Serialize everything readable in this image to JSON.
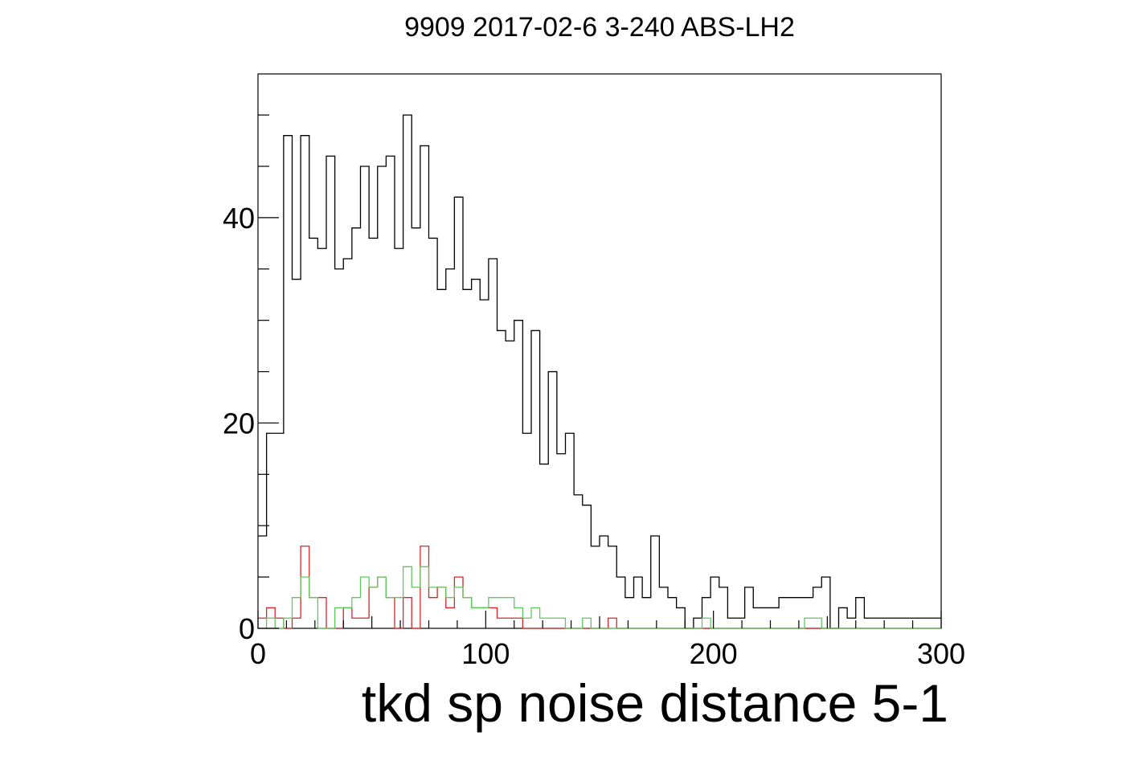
{
  "chart_data": {
    "type": "bar",
    "title": "9909 2017-02-6 3-240 ABS-LH2",
    "xlabel": "tkd sp noise distance 5-1",
    "ylabel": "",
    "xlim": [
      0,
      300
    ],
    "ylim": [
      0,
      54
    ],
    "bin_width": 3.75,
    "x_ticks": [
      0,
      100,
      200,
      300
    ],
    "y_ticks": [
      0,
      20,
      40
    ],
    "grid": false,
    "legend": "none",
    "series": [
      {
        "color": "#000000",
        "values": [
          9,
          19,
          19,
          48,
          34,
          48,
          38,
          37,
          46,
          35,
          36,
          39,
          45,
          38,
          45,
          46,
          37,
          50,
          39,
          47,
          38,
          33,
          35,
          42,
          33,
          34,
          32,
          36,
          29,
          28,
          30,
          19,
          29,
          16,
          25,
          17,
          19,
          13,
          12,
          8,
          9,
          8,
          5,
          3,
          5,
          3,
          9,
          4,
          3,
          2,
          0,
          1,
          3,
          5,
          4,
          1,
          1,
          4,
          2,
          2,
          2,
          3,
          3,
          3,
          3,
          4,
          5,
          0,
          2,
          1,
          3,
          1,
          1,
          1,
          1,
          1,
          1,
          1,
          1,
          1
        ]
      },
      {
        "color": "#d62728",
        "values": [
          1,
          2,
          1,
          0,
          1,
          8,
          3,
          3,
          0,
          0,
          2,
          1,
          1,
          4,
          5,
          3,
          0,
          3,
          0,
          8,
          3,
          4,
          2,
          5,
          3,
          2,
          2,
          2,
          1,
          1,
          1,
          0,
          0,
          0,
          0,
          0,
          0,
          0,
          0,
          0,
          0,
          1,
          0,
          0,
          0,
          0,
          0,
          0,
          0,
          0,
          0,
          0,
          0,
          0,
          0,
          0,
          0,
          0,
          0,
          0,
          0,
          0,
          0,
          0,
          0,
          0,
          0,
          0,
          0,
          0,
          0,
          0,
          0,
          0,
          0,
          0,
          0,
          0,
          0,
          0
        ]
      },
      {
        "color": "#5fc95f",
        "values": [
          0,
          1,
          0,
          1,
          3,
          5,
          3,
          0,
          0,
          2,
          2,
          3,
          5,
          4,
          5,
          3,
          3,
          6,
          4,
          6,
          4,
          4,
          3,
          4,
          3,
          2,
          2,
          3,
          3,
          3,
          2,
          1,
          2,
          1,
          1,
          1,
          0,
          0,
          1,
          0,
          0,
          0,
          0,
          0,
          0,
          0,
          0,
          0,
          0,
          0,
          0,
          0,
          1,
          0,
          0,
          0,
          0,
          0,
          0,
          0,
          0,
          0,
          0,
          0,
          1,
          1,
          0,
          0,
          0,
          0,
          0,
          0,
          0,
          0,
          0,
          0,
          0,
          0,
          0,
          0
        ]
      }
    ]
  }
}
